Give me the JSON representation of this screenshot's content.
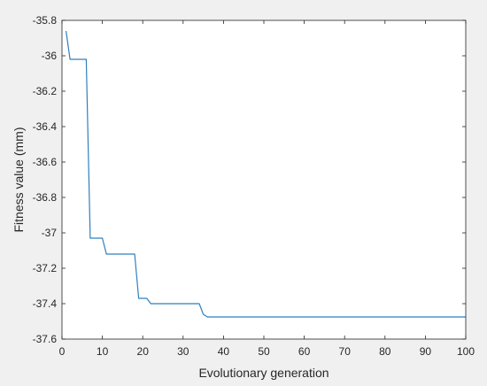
{
  "chart_data": {
    "type": "line",
    "title": "",
    "xlabel": "Evolutionary generation",
    "ylabel": "Fitness value (mm)",
    "xlim": [
      0,
      100
    ],
    "ylim": [
      -37.6,
      -35.8
    ],
    "x_ticks": [
      "0",
      "10",
      "20",
      "30",
      "40",
      "50",
      "60",
      "70",
      "80",
      "90",
      "100"
    ],
    "y_ticks": [
      "-35.8",
      "-36",
      "-36.2",
      "-36.4",
      "-36.6",
      "-36.8",
      "-37",
      "-37.2",
      "-37.4",
      "-37.6"
    ],
    "grid": false,
    "legend": "none",
    "series": [
      {
        "color": "#2f7fbf",
        "x": [
          1,
          2,
          3,
          4,
          5,
          6,
          7,
          8,
          9,
          10,
          11,
          12,
          13,
          14,
          15,
          16,
          17,
          18,
          19,
          20,
          21,
          22,
          23,
          24,
          25,
          26,
          27,
          28,
          29,
          30,
          31,
          32,
          33,
          34,
          35,
          36,
          37,
          38,
          39,
          40,
          50,
          60,
          70,
          80,
          90,
          100
        ],
        "y": [
          -35.86,
          -36.02,
          -36.02,
          -36.02,
          -36.02,
          -36.02,
          -37.03,
          -37.03,
          -37.03,
          -37.03,
          -37.12,
          -37.12,
          -37.12,
          -37.12,
          -37.12,
          -37.12,
          -37.12,
          -37.12,
          -37.37,
          -37.37,
          -37.37,
          -37.4,
          -37.4,
          -37.4,
          -37.4,
          -37.4,
          -37.4,
          -37.4,
          -37.4,
          -37.4,
          -37.4,
          -37.4,
          -37.4,
          -37.4,
          -37.46,
          -37.475,
          -37.475,
          -37.475,
          -37.475,
          -37.475,
          -37.475,
          -37.475,
          -37.475,
          -37.475,
          -37.475,
          -37.475
        ]
      }
    ]
  }
}
